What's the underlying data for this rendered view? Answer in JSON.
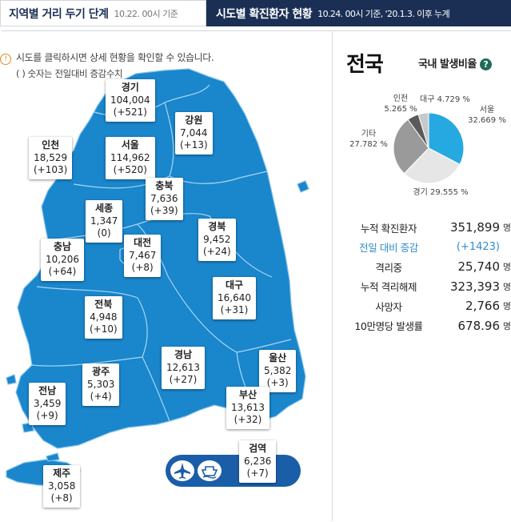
{
  "tabs": {
    "distance": {
      "title": "지역별 거리 두기 단계",
      "date": "10.22. 00시 기준"
    },
    "confirmed": {
      "title": "시도별 확진환자 현황",
      "date": "10.24. 00시 기준, '20.1.3. 이후 누계"
    }
  },
  "notice": {
    "text": "시도를 클릭하시면 상세 현황을 확인할 수 있습니다.",
    "sub": "( ) 숫자는 전일대비 증감수치"
  },
  "regions": [
    {
      "name": "경기",
      "total": "104,004",
      "change": "(+521)"
    },
    {
      "name": "강원",
      "total": "7,044",
      "change": "(+13)"
    },
    {
      "name": "인천",
      "total": "18,529",
      "change": "(+103)"
    },
    {
      "name": "서울",
      "total": "114,962",
      "change": "(+520)"
    },
    {
      "name": "충북",
      "total": "7,636",
      "change": "(+39)"
    },
    {
      "name": "세종",
      "total": "1,347",
      "change": "(0)"
    },
    {
      "name": "경북",
      "total": "9,452",
      "change": "(+24)"
    },
    {
      "name": "충남",
      "total": "10,206",
      "change": "(+64)"
    },
    {
      "name": "대전",
      "total": "7,467",
      "change": "(+8)"
    },
    {
      "name": "대구",
      "total": "16,640",
      "change": "(+31)"
    },
    {
      "name": "전북",
      "total": "4,948",
      "change": "(+10)"
    },
    {
      "name": "경남",
      "total": "12,613",
      "change": "(+27)"
    },
    {
      "name": "울산",
      "total": "5,382",
      "change": "(+3)"
    },
    {
      "name": "광주",
      "total": "5,303",
      "change": "(+4)"
    },
    {
      "name": "전남",
      "total": "3,459",
      "change": "(+9)"
    },
    {
      "name": "부산",
      "total": "13,613",
      "change": "(+32)"
    },
    {
      "name": "검역",
      "total": "6,236",
      "change": "(+7)"
    },
    {
      "name": "제주",
      "total": "3,058",
      "change": "(+8)"
    }
  ],
  "icons": {
    "airplane": "airplane-icon",
    "ship": "ship-icon",
    "info": "info-icon",
    "help": "question-icon"
  },
  "colors": {
    "accent": "#1b5ea8",
    "header": "#1b2f55",
    "highlight": "#2f8dcb",
    "pie_seoul": "#26a9e0",
    "pie_gyeonggi": "#e6e6e6",
    "pie_etc": "#9a9a9a",
    "pie_incheon": "#5a5a5a",
    "pie_daegu": "#c8c8c8"
  },
  "national": {
    "title": "전국",
    "ratio_label": "국내 발생비율",
    "pie": [
      {
        "label": "서울",
        "value": "32.669 %",
        "pct": 32.669
      },
      {
        "label": "경기",
        "value": "29.555 %",
        "pct": 29.555
      },
      {
        "label": "기타",
        "value": "27.782 %",
        "pct": 27.782
      },
      {
        "label": "인천",
        "value": "5.265 %",
        "pct": 5.265
      },
      {
        "label": "대구",
        "value": "4.729 %",
        "pct": 4.729
      }
    ],
    "stats": [
      {
        "label": "누적 확진환자",
        "value": "351,899",
        "unit": "명"
      },
      {
        "label": "전일 대비 증감",
        "value": "(+1423)",
        "unit": ""
      },
      {
        "label": "격리중",
        "value": "25,740",
        "unit": "명"
      },
      {
        "label": "누적 격리해제",
        "value": "323,393",
        "unit": "명"
      },
      {
        "label": "사망자",
        "value": "2,766",
        "unit": "명"
      },
      {
        "label": "10만명당 발생률",
        "value": "678.96",
        "unit": "명"
      }
    ]
  }
}
